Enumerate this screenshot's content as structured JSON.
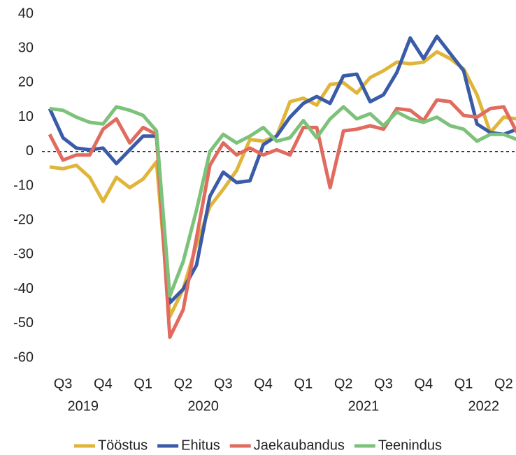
{
  "chart_data": {
    "type": "line",
    "categories": [
      null,
      "Q3",
      null,
      null,
      "Q4",
      null,
      null,
      "Q1",
      null,
      null,
      "Q2",
      null,
      null,
      "Q3",
      null,
      null,
      "Q4",
      null,
      null,
      "Q1",
      null,
      null,
      "Q2",
      null,
      null,
      "Q3",
      null,
      null,
      "Q4",
      null,
      null,
      "Q1",
      null,
      null,
      "Q2",
      null
    ],
    "category_groups": [
      {
        "label": "2019",
        "span": 6
      },
      {
        "label": "2020",
        "span": 12
      },
      {
        "label": "2021",
        "span": 12
      },
      {
        "label": "2022",
        "span": 6
      }
    ],
    "series": [
      {
        "name": "Tööstus",
        "color": "#e0b53a",
        "values": [
          -4.5,
          -5,
          -4,
          -7.5,
          -14.5,
          -7.5,
          -10.5,
          -8,
          -3,
          -48,
          -40,
          -27,
          -16,
          -11,
          -5.5,
          3.5,
          3,
          4.5,
          14.5,
          15.5,
          13.5,
          19.5,
          20,
          17,
          21.5,
          23.5,
          26,
          25.5,
          26,
          29,
          27,
          24,
          16.5,
          5.5,
          10,
          9.5
        ]
      },
      {
        "name": "Ehitus",
        "color": "#3a5ba8",
        "values": [
          12.5,
          4,
          1,
          0.5,
          1,
          -3.5,
          0.5,
          4.5,
          4.5,
          -44,
          -40,
          -33,
          -13,
          -6,
          -9,
          -8.5,
          2,
          4.5,
          10,
          14,
          16,
          14,
          22,
          22.5,
          14.5,
          16.5,
          23,
          33,
          27,
          33.5,
          28.5,
          23.5,
          8,
          5.5,
          5,
          6.5
        ]
      },
      {
        "name": "Jaekaubandus",
        "color": "#e06b5e",
        "values": [
          5,
          -2.5,
          -1,
          -1,
          6.5,
          9.5,
          2.5,
          7,
          5,
          -54,
          -46,
          -25,
          -4,
          2.5,
          -1,
          1,
          -1,
          0.5,
          -1,
          7,
          7,
          -10.5,
          6,
          6.5,
          7.5,
          6.5,
          12.5,
          12,
          9,
          15,
          14.5,
          10.5,
          10,
          12.5,
          13,
          5.5
        ]
      },
      {
        "name": "Teenindus",
        "color": "#7cc27a",
        "values": [
          12.5,
          12,
          10,
          8.5,
          8,
          13,
          12,
          10.5,
          6,
          -42,
          -32,
          -17,
          0,
          5,
          2.5,
          4.5,
          7,
          3,
          4,
          9,
          4,
          9.5,
          13,
          9.5,
          11,
          7.5,
          11.5,
          9.5,
          8.5,
          10,
          7.5,
          6.5,
          3,
          5,
          5,
          3.5
        ]
      }
    ],
    "ylim": [
      -60,
      40
    ],
    "yticks": [
      -60,
      -50,
      -40,
      -30,
      -20,
      -10,
      0,
      10,
      20,
      30,
      40
    ],
    "zero_line": true,
    "legend": "bottom"
  }
}
